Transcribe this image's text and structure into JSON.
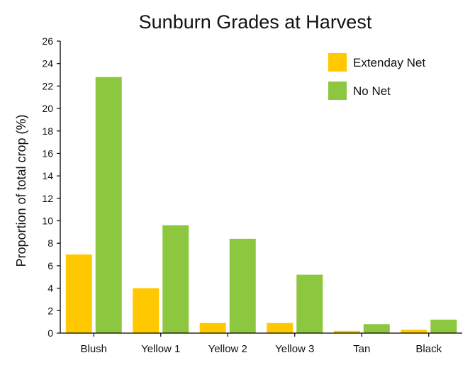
{
  "chart_data": {
    "type": "bar",
    "title": "Sunburn Grades at Harvest",
    "xlabel": "",
    "ylabel": "Proportion of total crop (%)",
    "ylim": [
      0,
      26
    ],
    "yticks": [
      0,
      2,
      4,
      6,
      8,
      10,
      12,
      14,
      16,
      18,
      20,
      22,
      24,
      26
    ],
    "categories": [
      "Blush",
      "Yellow 1",
      "Yellow 2",
      "Yellow 3",
      "Tan",
      "Black"
    ],
    "series": [
      {
        "name": "Extenday Net",
        "color": "#FFC800",
        "values": [
          7.0,
          4.0,
          0.9,
          0.9,
          0.2,
          0.3
        ]
      },
      {
        "name": "No Net",
        "color": "#8DC63F",
        "values": [
          22.8,
          9.6,
          8.4,
          5.2,
          0.8,
          1.2
        ]
      }
    ],
    "grid": false,
    "legend_position": "top-right"
  }
}
